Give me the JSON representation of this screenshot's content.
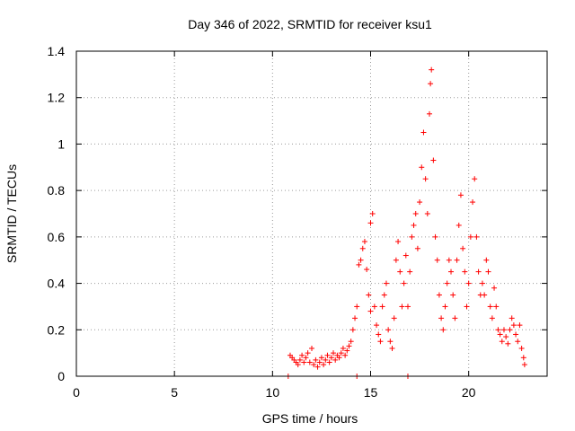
{
  "chart_data": {
    "type": "scatter",
    "title": "Day 346 of 2022, SRMTID for receiver ksu1",
    "xlabel": "GPS time / hours",
    "ylabel": "SRMTID / TECUs",
    "xlim": [
      0,
      24
    ],
    "ylim": [
      0,
      1.4
    ],
    "xticks": [
      0,
      5,
      10,
      15,
      20
    ],
    "xtick_labels": [
      "0",
      "5",
      "10",
      "15",
      "20"
    ],
    "yticks": [
      0,
      0.2,
      0.4,
      0.6,
      0.8,
      1.0,
      1.2,
      1.4
    ],
    "ytick_labels": [
      "0",
      "0.2",
      "0.4",
      "0.6",
      "0.8",
      "1",
      "1.2",
      "1.4"
    ],
    "grid": true,
    "marker": "plus",
    "color": "#ff0000",
    "series": [
      {
        "name": "SRMTID",
        "points": [
          [
            10.8,
            0.0
          ],
          [
            14.3,
            0.0
          ],
          [
            16.9,
            0.0
          ],
          [
            10.9,
            0.09
          ],
          [
            11.0,
            0.08
          ],
          [
            11.1,
            0.07
          ],
          [
            11.2,
            0.06
          ],
          [
            11.3,
            0.05
          ],
          [
            11.4,
            0.07
          ],
          [
            11.5,
            0.09
          ],
          [
            11.6,
            0.06
          ],
          [
            11.7,
            0.08
          ],
          [
            11.8,
            0.1
          ],
          [
            11.9,
            0.06
          ],
          [
            12.0,
            0.12
          ],
          [
            12.1,
            0.05
          ],
          [
            12.2,
            0.07
          ],
          [
            12.3,
            0.04
          ],
          [
            12.4,
            0.06
          ],
          [
            12.5,
            0.08
          ],
          [
            12.6,
            0.05
          ],
          [
            12.7,
            0.07
          ],
          [
            12.8,
            0.09
          ],
          [
            12.9,
            0.06
          ],
          [
            13.0,
            0.08
          ],
          [
            13.1,
            0.1
          ],
          [
            13.2,
            0.07
          ],
          [
            13.3,
            0.09
          ],
          [
            13.4,
            0.08
          ],
          [
            13.5,
            0.1
          ],
          [
            13.6,
            0.12
          ],
          [
            13.7,
            0.09
          ],
          [
            13.8,
            0.11
          ],
          [
            13.9,
            0.13
          ],
          [
            14.0,
            0.15
          ],
          [
            14.1,
            0.2
          ],
          [
            14.2,
            0.25
          ],
          [
            14.3,
            0.3
          ],
          [
            14.4,
            0.48
          ],
          [
            14.5,
            0.5
          ],
          [
            14.6,
            0.55
          ],
          [
            14.7,
            0.58
          ],
          [
            14.8,
            0.46
          ],
          [
            14.9,
            0.35
          ],
          [
            15.0,
            0.28
          ],
          [
            15.0,
            0.66
          ],
          [
            15.1,
            0.7
          ],
          [
            15.2,
            0.3
          ],
          [
            15.3,
            0.22
          ],
          [
            15.4,
            0.18
          ],
          [
            15.5,
            0.15
          ],
          [
            15.6,
            0.3
          ],
          [
            15.7,
            0.35
          ],
          [
            15.8,
            0.4
          ],
          [
            15.9,
            0.2
          ],
          [
            16.0,
            0.15
          ],
          [
            16.1,
            0.12
          ],
          [
            16.2,
            0.25
          ],
          [
            16.3,
            0.5
          ],
          [
            16.4,
            0.58
          ],
          [
            16.5,
            0.45
          ],
          [
            16.6,
            0.3
          ],
          [
            16.7,
            0.4
          ],
          [
            16.8,
            0.52
          ],
          [
            16.9,
            0.3
          ],
          [
            17.0,
            0.45
          ],
          [
            17.1,
            0.6
          ],
          [
            17.2,
            0.65
          ],
          [
            17.3,
            0.7
          ],
          [
            17.4,
            0.55
          ],
          [
            17.5,
            0.75
          ],
          [
            17.6,
            0.9
          ],
          [
            17.7,
            1.05
          ],
          [
            17.8,
            0.85
          ],
          [
            17.9,
            0.7
          ],
          [
            18.0,
            1.13
          ],
          [
            18.05,
            1.26
          ],
          [
            18.1,
            1.32
          ],
          [
            18.2,
            0.93
          ],
          [
            18.3,
            0.6
          ],
          [
            18.4,
            0.5
          ],
          [
            18.5,
            0.35
          ],
          [
            18.6,
            0.25
          ],
          [
            18.7,
            0.2
          ],
          [
            18.8,
            0.3
          ],
          [
            18.9,
            0.4
          ],
          [
            19.0,
            0.5
          ],
          [
            19.1,
            0.45
          ],
          [
            19.2,
            0.35
          ],
          [
            19.3,
            0.25
          ],
          [
            19.4,
            0.5
          ],
          [
            19.5,
            0.65
          ],
          [
            19.6,
            0.78
          ],
          [
            19.7,
            0.55
          ],
          [
            19.8,
            0.45
          ],
          [
            19.9,
            0.3
          ],
          [
            20.0,
            0.4
          ],
          [
            20.1,
            0.6
          ],
          [
            20.2,
            0.75
          ],
          [
            20.3,
            0.85
          ],
          [
            20.4,
            0.6
          ],
          [
            20.5,
            0.45
          ],
          [
            20.6,
            0.35
          ],
          [
            20.7,
            0.4
          ],
          [
            20.8,
            0.35
          ],
          [
            20.9,
            0.5
          ],
          [
            21.0,
            0.45
          ],
          [
            21.1,
            0.3
          ],
          [
            21.2,
            0.25
          ],
          [
            21.3,
            0.38
          ],
          [
            21.4,
            0.3
          ],
          [
            21.5,
            0.2
          ],
          [
            21.6,
            0.18
          ],
          [
            21.7,
            0.15
          ],
          [
            21.8,
            0.2
          ],
          [
            21.9,
            0.17
          ],
          [
            22.0,
            0.14
          ],
          [
            22.1,
            0.2
          ],
          [
            22.2,
            0.25
          ],
          [
            22.3,
            0.22
          ],
          [
            22.4,
            0.18
          ],
          [
            22.5,
            0.15
          ],
          [
            22.6,
            0.22
          ],
          [
            22.7,
            0.12
          ],
          [
            22.8,
            0.08
          ],
          [
            22.85,
            0.05
          ]
        ]
      }
    ]
  }
}
